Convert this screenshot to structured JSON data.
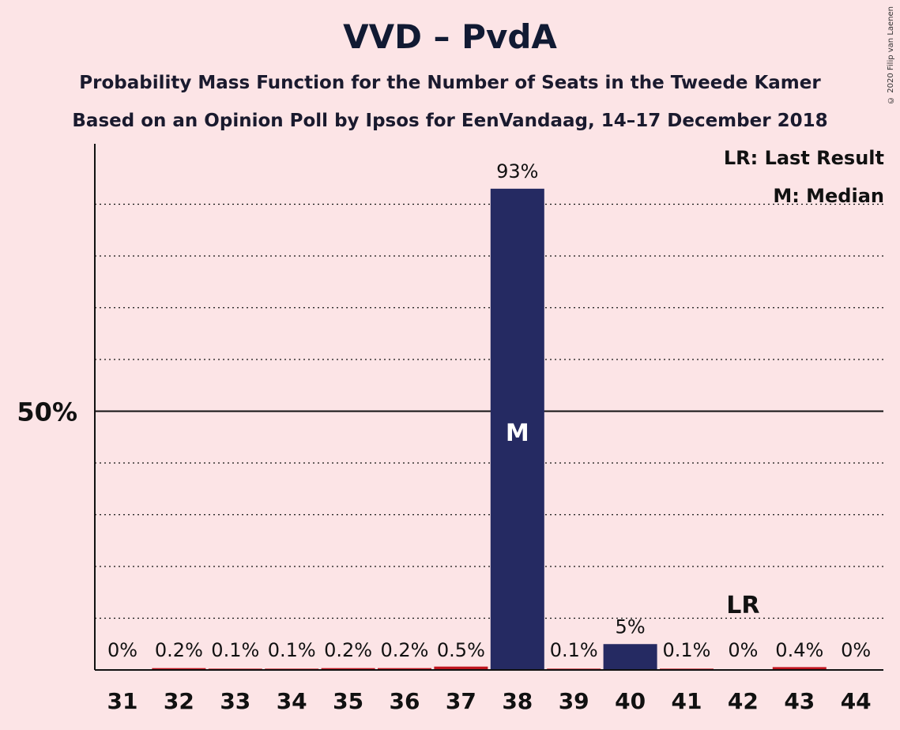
{
  "title": "VVD – PvdA",
  "subtitle1": "Probability Mass Function for the Number of Seats in the Tweede Kamer",
  "subtitle2": "Based on an Opinion Poll by Ipsos for EenVandaag, 14–17 December 2018",
  "copyright": "© 2020 Filip van Laenen",
  "legend": {
    "lr": "LR: Last Result",
    "m": "M: Median"
  },
  "chart_data": {
    "type": "bar",
    "categories": [
      "31",
      "32",
      "33",
      "34",
      "35",
      "36",
      "37",
      "38",
      "39",
      "40",
      "41",
      "42",
      "43",
      "44"
    ],
    "values": [
      0,
      0.2,
      0.1,
      0.1,
      0.2,
      0.2,
      0.5,
      93,
      0.1,
      5,
      0.1,
      0,
      0.4,
      0
    ],
    "labels": [
      "0%",
      "0.2%",
      "0.1%",
      "0.1%",
      "0.2%",
      "0.2%",
      "0.5%",
      "93%",
      "0.1%",
      "5%",
      "0.1%",
      "0%",
      "0.4%",
      "0%"
    ],
    "ylim": [
      0,
      100
    ],
    "ytick_label": "50%",
    "ytick_value": 50,
    "gridlines": [
      10,
      20,
      30,
      40,
      60,
      70,
      80,
      90
    ],
    "median_category": "38",
    "median_marker": "M",
    "last_result_category": "42",
    "last_result_marker": "LR",
    "colors": {
      "bar": "#252a62",
      "small_bar": "#c0141e",
      "background": "#fce4e6"
    }
  }
}
